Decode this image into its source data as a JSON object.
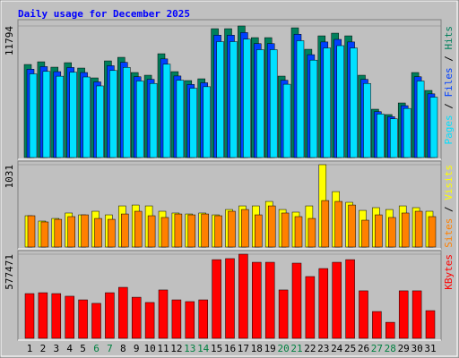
{
  "chart_data": [
    {
      "type": "bar",
      "title": "Daily usage for December 2025",
      "categories": [
        "1",
        "2",
        "3",
        "4",
        "5",
        "6",
        "7",
        "8",
        "9",
        "10",
        "11",
        "12",
        "13",
        "14",
        "15",
        "16",
        "17",
        "18",
        "19",
        "20",
        "21",
        "22",
        "23",
        "24",
        "25",
        "26",
        "27",
        "28",
        "29",
        "30",
        "31"
      ],
      "category_colors": [
        "#000000",
        "#000000",
        "#000000",
        "#000000",
        "#000000",
        "#008040",
        "#008040",
        "#000000",
        "#000000",
        "#000000",
        "#000000",
        "#000000",
        "#008040",
        "#008040",
        "#000000",
        "#000000",
        "#000000",
        "#000000",
        "#000000",
        "#008040",
        "#008040",
        "#000000",
        "#000000",
        "#000000",
        "#000000",
        "#000000",
        "#008040",
        "#008040",
        "#000000",
        "#000000",
        "#000000"
      ],
      "ylim": [
        0,
        11794
      ],
      "yticks": [
        11794
      ],
      "series": [
        {
          "name": "Hits",
          "color": "#00805c",
          "values": [
            8341,
            8581,
            8100,
            8501,
            8020,
            7138,
            8662,
            8982,
            7619,
            7378,
            9303,
            7699,
            6897,
            7058,
            11549,
            11549,
            11794,
            10747,
            10747,
            7298,
            11629,
            9704,
            10907,
            11148,
            10907,
            7378,
            4331,
            3850,
            4892,
            7619,
            6015
          ]
        },
        {
          "name": "Files",
          "color": "#0040ff",
          "values": [
            7920,
            8150,
            7700,
            8070,
            7620,
            6780,
            8230,
            8530,
            7240,
            7010,
            8840,
            7310,
            6550,
            6700,
            10970,
            10970,
            11200,
            10210,
            10210,
            6930,
            11050,
            9220,
            10360,
            10590,
            10360,
            7010,
            4110,
            3660,
            4650,
            7240,
            5710
          ]
        },
        {
          "name": "Pages",
          "color": "#00e0ff",
          "values": [
            7500,
            7720,
            7290,
            7650,
            7220,
            6420,
            7800,
            8080,
            6860,
            6640,
            8370,
            6930,
            6210,
            6350,
            10390,
            10390,
            10610,
            9670,
            9670,
            6570,
            10470,
            8730,
            9820,
            10030,
            9820,
            6640,
            3900,
            3470,
            4400,
            6860,
            5410
          ]
        }
      ]
    },
    {
      "type": "bar",
      "ylim": [
        0,
        1031
      ],
      "yticks": [
        1031
      ],
      "series": [
        {
          "name": "Visits",
          "color": "#ffff00",
          "values": [
            392,
            325,
            358,
            426,
            403,
            448,
            403,
            515,
            526,
            515,
            448,
            426,
            414,
            426,
            403,
            470,
            515,
            515,
            571,
            470,
            437,
            515,
            1031,
            694,
            560,
            459,
            493,
            470,
            515,
            493,
            448
          ]
        },
        {
          "name": "Sites",
          "color": "#ff8000",
          "values": [
            392,
            314,
            347,
            381,
            403,
            358,
            347,
            414,
            448,
            392,
            370,
            414,
            403,
            414,
            392,
            448,
            470,
            403,
            515,
            426,
            381,
            358,
            582,
            571,
            526,
            336,
            403,
            370,
            426,
            448,
            381
          ]
        }
      ]
    },
    {
      "type": "bar",
      "ylim": [
        0,
        577471
      ],
      "yticks": [
        577471
      ],
      "series": [
        {
          "name": "KBytes",
          "color": "#ff0000",
          "values": [
            307000,
            313000,
            307000,
            289000,
            264000,
            240000,
            313000,
            350000,
            282000,
            246000,
            332000,
            264000,
            252000,
            264000,
            540000,
            547000,
            577471,
            522000,
            522000,
            332000,
            516000,
            424000,
            479000,
            522000,
            540000,
            326000,
            184000,
            110000,
            326000,
            326000,
            190000
          ]
        }
      ]
    }
  ]
}
